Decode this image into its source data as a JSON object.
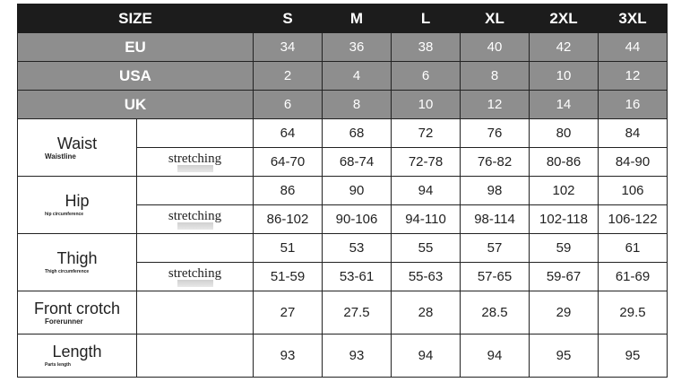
{
  "header": {
    "label": "SIZE",
    "sizes": [
      "S",
      "M",
      "L",
      "XL",
      "2XL",
      "3XL"
    ]
  },
  "conversions": [
    {
      "label": "EU",
      "values": [
        "34",
        "36",
        "38",
        "40",
        "42",
        "44"
      ]
    },
    {
      "label": "USA",
      "values": [
        "2",
        "4",
        "6",
        "8",
        "10",
        "12"
      ]
    },
    {
      "label": "UK",
      "values": [
        "6",
        "8",
        "10",
        "12",
        "14",
        "16"
      ]
    }
  ],
  "stretching_label": "stretching",
  "measurements": [
    {
      "label": "Waist",
      "sub": "Waistline",
      "values": [
        "64",
        "68",
        "72",
        "76",
        "80",
        "84"
      ],
      "stretch": [
        "64-70",
        "68-74",
        "72-78",
        "76-82",
        "80-86",
        "84-90"
      ]
    },
    {
      "label": "Hip",
      "sub": "hip circumference",
      "values": [
        "86",
        "90",
        "94",
        "98",
        "102",
        "106"
      ],
      "stretch": [
        "86-102",
        "90-106",
        "94-110",
        "98-114",
        "102-118",
        "106-122"
      ]
    },
    {
      "label": "Thigh",
      "sub": "Thigh circumference",
      "values": [
        "51",
        "53",
        "55",
        "57",
        "59",
        "61"
      ],
      "stretch": [
        "51-59",
        "53-61",
        "55-63",
        "57-65",
        "59-67",
        "61-69"
      ]
    },
    {
      "label": "Front crotch",
      "sub": "Forerunner",
      "values": [
        "27",
        "27.5",
        "28",
        "28.5",
        "29",
        "29.5"
      ]
    },
    {
      "label": "Length",
      "sub": "Parts length",
      "values": [
        "93",
        "93",
        "94",
        "94",
        "95",
        "95"
      ]
    }
  ]
}
